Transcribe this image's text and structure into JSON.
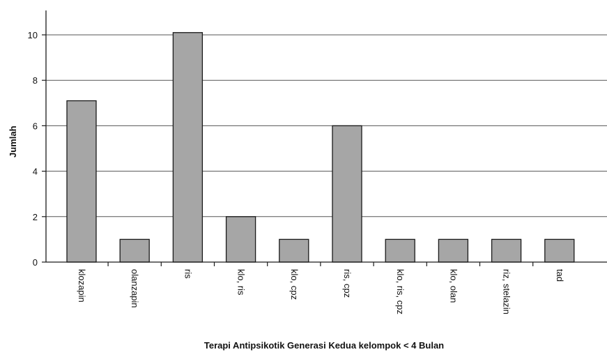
{
  "chart_data": {
    "type": "bar",
    "title": "",
    "xlabel": "Terapi Antipsikotik Generasi Kedua kelompok < 4 Bulan",
    "ylabel": "Jumlah",
    "categories": [
      "klozapin",
      "olanzapin",
      "ris",
      "klo, ris",
      "klo, cpz",
      "ris, cpz",
      "klo, ris, cpz",
      "klo, olan",
      "riz, stelazin",
      "tad"
    ],
    "values": [
      7.1,
      1,
      10.1,
      2,
      1,
      6,
      1,
      1,
      1,
      1
    ],
    "ylim": [
      0,
      11
    ],
    "yticks": [
      0,
      2,
      4,
      6,
      8,
      10
    ],
    "grid": true,
    "bar_color": "#a6a6a6"
  }
}
